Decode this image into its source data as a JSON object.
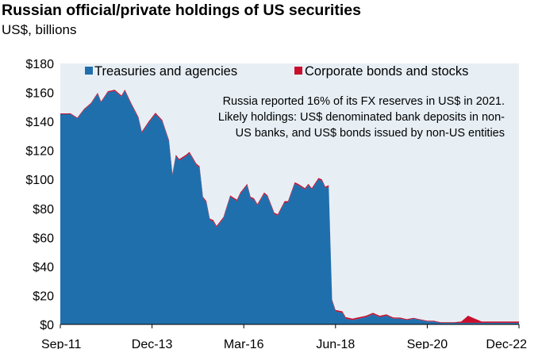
{
  "chart_data": {
    "type": "area",
    "stacked": true,
    "title": "Russian official/private holdings of US securities",
    "subtitle": "US$, billions",
    "x_tick_labels": [
      "Sep-11",
      "Dec-13",
      "Mar-16",
      "Jun-18",
      "Sep-20",
      "Dec-22"
    ],
    "y_tick_labels": [
      "$0",
      "$20",
      "$40",
      "$60",
      "$80",
      "$100",
      "$120",
      "$140",
      "$160",
      "$180"
    ],
    "y_ticks": [
      0,
      20,
      40,
      60,
      80,
      100,
      120,
      140,
      160,
      180
    ],
    "ylim": [
      0,
      180
    ],
    "xlim": [
      "2011-09",
      "2022-12"
    ],
    "legend_position": "top",
    "grid": false,
    "annotation": [
      "Russia reported 16% of its FX reserves in US$ in 2021.",
      "Likely holdings: US$ denominated bank deposits in non-",
      "US banks, and US$ bonds issued by non-US entities"
    ],
    "series": [
      {
        "name": "Treasuries and agencies",
        "color": "#1f6fad",
        "points": [
          [
            "2011-09",
            145
          ],
          [
            "2011-12",
            145
          ],
          [
            "2012-02",
            142
          ],
          [
            "2012-04",
            148
          ],
          [
            "2012-06",
            152
          ],
          [
            "2012-08",
            159
          ],
          [
            "2012-09",
            153
          ],
          [
            "2012-11",
            160
          ],
          [
            "2013-01",
            161
          ],
          [
            "2013-03",
            157
          ],
          [
            "2013-04",
            161
          ],
          [
            "2013-06",
            151
          ],
          [
            "2013-08",
            142
          ],
          [
            "2013-09",
            132
          ],
          [
            "2013-11",
            139
          ],
          [
            "2014-01",
            145
          ],
          [
            "2014-03",
            140
          ],
          [
            "2014-05",
            126
          ],
          [
            "2014-06",
            103
          ],
          [
            "2014-07",
            116
          ],
          [
            "2014-08",
            113
          ],
          [
            "2014-10",
            116
          ],
          [
            "2014-11",
            118
          ],
          [
            "2015-01",
            110
          ],
          [
            "2015-02",
            108
          ],
          [
            "2015-03",
            87
          ],
          [
            "2015-04",
            84
          ],
          [
            "2015-05",
            72
          ],
          [
            "2015-06",
            71
          ],
          [
            "2015-07",
            67
          ],
          [
            "2015-09",
            73
          ],
          [
            "2015-11",
            88
          ],
          [
            "2016-01",
            85
          ],
          [
            "2016-02",
            90
          ],
          [
            "2016-04",
            96
          ],
          [
            "2016-05",
            87
          ],
          [
            "2016-06",
            86
          ],
          [
            "2016-07",
            82
          ],
          [
            "2016-09",
            90
          ],
          [
            "2016-10",
            88
          ],
          [
            "2016-12",
            76
          ],
          [
            "2017-01",
            75
          ],
          [
            "2017-03",
            84
          ],
          [
            "2017-04",
            84
          ],
          [
            "2017-06",
            97
          ],
          [
            "2017-07",
            96
          ],
          [
            "2017-09",
            93
          ],
          [
            "2017-10",
            96
          ],
          [
            "2017-11",
            93
          ],
          [
            "2018-01",
            100
          ],
          [
            "2018-02",
            99
          ],
          [
            "2018-03",
            94
          ],
          [
            "2018-04",
            95
          ],
          [
            "2018-05",
            16
          ],
          [
            "2018-06",
            9
          ],
          [
            "2018-08",
            8
          ],
          [
            "2018-09",
            4
          ],
          [
            "2018-11",
            3
          ],
          [
            "2019-01",
            4
          ],
          [
            "2019-03",
            5
          ],
          [
            "2019-05",
            7
          ],
          [
            "2019-07",
            5
          ],
          [
            "2019-09",
            6
          ],
          [
            "2019-11",
            4
          ],
          [
            "2020-01",
            4
          ],
          [
            "2020-03",
            3
          ],
          [
            "2020-05",
            4
          ],
          [
            "2020-07",
            3
          ],
          [
            "2020-09",
            2
          ],
          [
            "2020-11",
            2
          ],
          [
            "2021-01",
            1
          ],
          [
            "2021-03",
            1
          ],
          [
            "2021-05",
            1
          ],
          [
            "2021-07",
            1
          ],
          [
            "2021-09",
            1
          ],
          [
            "2021-11",
            1
          ],
          [
            "2022-01",
            1
          ],
          [
            "2022-03",
            1
          ],
          [
            "2022-06",
            1
          ],
          [
            "2022-09",
            1
          ],
          [
            "2022-12",
            1
          ]
        ]
      },
      {
        "name": "Corporate bonds and stocks",
        "color": "#c8102e",
        "points": [
          [
            "2011-09",
            0.5
          ],
          [
            "2013-06",
            1
          ],
          [
            "2015-06",
            1
          ],
          [
            "2017-06",
            1
          ],
          [
            "2018-04",
            1
          ],
          [
            "2018-06",
            1
          ],
          [
            "2019-06",
            1
          ],
          [
            "2020-06",
            0.5
          ],
          [
            "2021-01",
            0.5
          ],
          [
            "2021-05",
            0.5
          ],
          [
            "2021-07",
            1
          ],
          [
            "2021-08",
            3
          ],
          [
            "2021-09",
            5
          ],
          [
            "2021-11",
            3
          ],
          [
            "2022-01",
            1
          ],
          [
            "2022-03",
            1
          ],
          [
            "2022-06",
            1
          ],
          [
            "2022-12",
            1
          ]
        ]
      }
    ]
  }
}
